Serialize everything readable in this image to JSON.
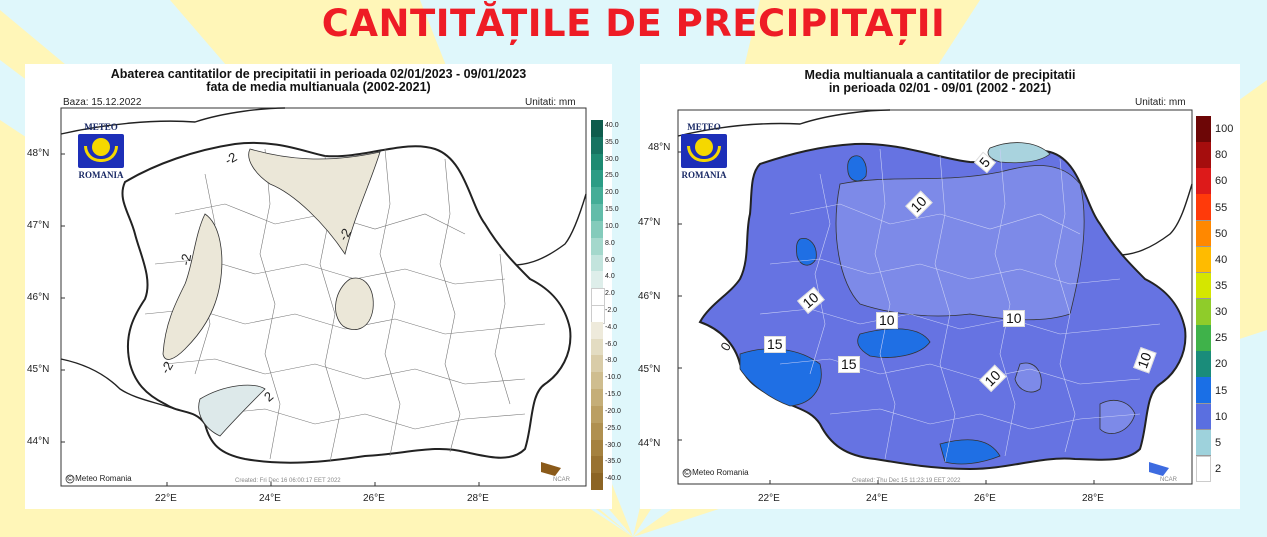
{
  "page_title": "CANTITĂȚILE DE PRECIPITAȚII",
  "colors": {
    "title": "#ee1c25",
    "background": "#dff7fb",
    "rays": "#fff6b8"
  },
  "left_map": {
    "title_line1": "Abaterea cantitatilor de precipitatii in perioada 02/01/2023 - 09/01/2023",
    "title_line2": "fata de media multianuala (2002-2021)",
    "base": "Baza: 15.12.2022",
    "units": "Unitati: mm",
    "lat_labels": [
      "48°N",
      "47°N",
      "46°N",
      "45°N",
      "44°N"
    ],
    "lon_labels": [
      "22°E",
      "24°E",
      "26°E",
      "28°E"
    ],
    "copyright": "© Meteo Romania",
    "created": "Created: Fri Dec 16 06:00:17 EET 2022",
    "ncar": "NCAR",
    "logo_top": "METEO",
    "logo_bottom": "ROMANIA",
    "legend": {
      "labels": [
        "40.0",
        "35.0",
        "30.0",
        "25.0",
        "20.0",
        "15.0",
        "10.0",
        "8.0",
        "6.0",
        "4.0",
        "2.0",
        "-2.0",
        "-4.0",
        "-6.0",
        "-8.0",
        "-10.0",
        "-15.0",
        "-20.0",
        "-25.0",
        "-30.0",
        "-35.0",
        "-40.0"
      ],
      "colors": [
        "#0e5c4d",
        "#167361",
        "#1e8a72",
        "#2c9c85",
        "#45ad97",
        "#63bca9",
        "#84cbbb",
        "#a4d8cc",
        "#c3e4dd",
        "#deeeea",
        "#ffffff",
        "#ffffff",
        "#eeeadb",
        "#e3dcc2",
        "#d9cca8",
        "#cfbd8f",
        "#c5ae78",
        "#bb9f63",
        "#b09050",
        "#a5813f",
        "#997231",
        "#8c6424"
      ]
    },
    "contour_labels": [
      "-2",
      "-2",
      "-2",
      "-2",
      "2"
    ]
  },
  "right_map": {
    "title_line1": "Media multianuala a cantitatilor de precipitatii",
    "title_line2": "in perioada 02/01 - 09/01 (2002 - 2021)",
    "units": "Unitati: mm",
    "lat_labels": [
      "48°N",
      "47°N",
      "46°N",
      "45°N",
      "44°N"
    ],
    "lon_labels": [
      "22°E",
      "24°E",
      "26°E",
      "28°E"
    ],
    "copyright": "© Meteo Romania",
    "created": "Created: Thu Dec 15 11:23:19 EET 2022",
    "ncar": "NCAR",
    "logo_top": "METEO",
    "logo_bottom": "ROMANIA",
    "legend": {
      "labels": [
        "100",
        "80",
        "60",
        "55",
        "50",
        "40",
        "35",
        "30",
        "25",
        "20",
        "15",
        "10",
        "5",
        "2"
      ],
      "colors": [
        "#6d0606",
        "#a50d0d",
        "#dd1a1a",
        "#ff3a0a",
        "#ff8800",
        "#ffbb00",
        "#d5e600",
        "#8fcc2a",
        "#3fb24a",
        "#1a8c7a",
        "#1a6fe6",
        "#5a6fe0",
        "#9ed2dc",
        "#ffffff"
      ]
    },
    "contour_labels": [
      "5",
      "10",
      "10",
      "10",
      "10",
      "15",
      "15",
      "10",
      "10",
      "0"
    ]
  }
}
